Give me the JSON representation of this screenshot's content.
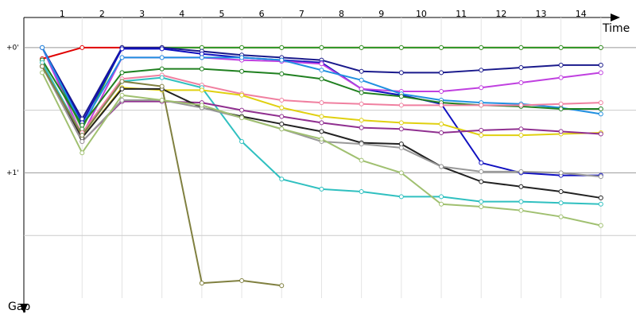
{
  "chart_data": {
    "type": "line",
    "x_label": "Time",
    "y_label": "Gap",
    "x": [
      0,
      1,
      2,
      3,
      4,
      5,
      6,
      7,
      8,
      9,
      10,
      11,
      12,
      13,
      14
    ],
    "xlim": [
      -0.46,
      14.88
    ],
    "xticks": [
      {
        "value": 0.5,
        "label": "1"
      },
      {
        "value": 1.5,
        "label": "2"
      },
      {
        "value": 2.5,
        "label": "3"
      },
      {
        "value": 3.5,
        "label": "4"
      },
      {
        "value": 4.5,
        "label": "5"
      },
      {
        "value": 5.5,
        "label": "6"
      },
      {
        "value": 6.5,
        "label": "7"
      },
      {
        "value": 7.5,
        "label": "8"
      },
      {
        "value": 8.5,
        "label": "9"
      },
      {
        "value": 9.5,
        "label": "10"
      },
      {
        "value": 10.5,
        "label": "11"
      },
      {
        "value": 11.5,
        "label": "12"
      },
      {
        "value": 12.5,
        "label": "13"
      },
      {
        "value": 13.5,
        "label": "14"
      }
    ],
    "ylim": [
      -0.24,
      2.0
    ],
    "y_inverted": true,
    "yticks": [
      {
        "value": 0,
        "label": "+0'"
      },
      {
        "value": 1,
        "label": "+1'"
      }
    ],
    "minor_yticks": [
      0.5,
      1.5
    ],
    "grid": true,
    "series": [
      {
        "color": "#e00000",
        "values": [
          0.09,
          0,
          0,
          0,
          0,
          0,
          0,
          0,
          0,
          0,
          0,
          0,
          0,
          0,
          0
        ]
      },
      {
        "color": "#2a9d2a",
        "values": [
          0,
          0.65,
          0,
          0,
          0,
          0,
          0,
          0,
          0,
          0,
          0,
          0,
          0,
          0,
          0
        ]
      },
      {
        "color": "#1a1a8c",
        "values": [
          0,
          0.57,
          0,
          0,
          0.03,
          0.06,
          0.08,
          0.1,
          0.19,
          0.2,
          0.2,
          0.18,
          0.16,
          0.14,
          0.14
        ]
      },
      {
        "color": "#1010c0",
        "values": [
          0,
          0.6,
          0.01,
          0.01,
          0.05,
          0.08,
          0.1,
          0.12,
          0.33,
          0.38,
          0.45,
          0.92,
          1.0,
          1.02,
          1.02
        ]
      },
      {
        "color": "#c040e0",
        "values": [
          0,
          0.7,
          0.08,
          0.08,
          0.08,
          0.1,
          0.11,
          0.13,
          0.33,
          0.35,
          0.35,
          0.32,
          0.28,
          0.24,
          0.2
        ]
      },
      {
        "color": "#2090e0",
        "values": [
          0,
          0.62,
          0.08,
          0.08,
          0.08,
          0.08,
          0.1,
          0.18,
          0.26,
          0.37,
          0.42,
          0.44,
          0.45,
          0.48,
          0.53
        ]
      },
      {
        "color": "#208020",
        "values": [
          0.1,
          0.62,
          0.2,
          0.17,
          0.17,
          0.19,
          0.21,
          0.25,
          0.36,
          0.39,
          0.44,
          0.46,
          0.47,
          0.49,
          0.49
        ]
      },
      {
        "color": "#f080a0",
        "values": [
          0.15,
          0.68,
          0.25,
          0.22,
          0.3,
          0.37,
          0.42,
          0.44,
          0.45,
          0.46,
          0.46,
          0.46,
          0.46,
          0.45,
          0.44
        ]
      },
      {
        "color": "#30c0c0",
        "values": [
          0.12,
          0.7,
          0.27,
          0.24,
          0.32,
          0.75,
          1.05,
          1.13,
          1.15,
          1.19,
          1.19,
          1.23,
          1.23,
          1.24,
          1.25
        ]
      },
      {
        "color": "#e0d010",
        "values": [
          0.15,
          0.72,
          0.32,
          0.34,
          0.34,
          0.38,
          0.48,
          0.55,
          0.58,
          0.6,
          0.61,
          0.7,
          0.7,
          0.69,
          0.68
        ]
      },
      {
        "color": "#903090",
        "values": [
          0.15,
          0.75,
          0.43,
          0.43,
          0.44,
          0.5,
          0.55,
          0.6,
          0.64,
          0.65,
          0.68,
          0.66,
          0.65,
          0.67,
          0.69
        ]
      },
      {
        "color": "#222222",
        "values": [
          0.15,
          0.72,
          0.33,
          0.33,
          0.48,
          0.55,
          0.61,
          0.67,
          0.76,
          0.77,
          0.95,
          1.07,
          1.11,
          1.15,
          1.2
        ]
      },
      {
        "color": "#999999",
        "values": [
          0.15,
          0.75,
          0.42,
          0.42,
          0.48,
          0.56,
          0.65,
          0.75,
          0.77,
          0.8,
          0.95,
          0.99,
          0.99,
          1.0,
          1.03
        ]
      },
      {
        "color": "#808040",
        "values": [
          0.15,
          0.7,
          0.27,
          0.31,
          1.88,
          1.86,
          1.9,
          null,
          null,
          null,
          null,
          null,
          null,
          null,
          null
        ]
      },
      {
        "color": "#a0c070",
        "values": [
          0.2,
          0.84,
          0.38,
          0.42,
          0.46,
          0.56,
          0.65,
          0.73,
          0.9,
          1.0,
          1.25,
          1.27,
          1.3,
          1.35,
          1.42
        ]
      }
    ]
  }
}
